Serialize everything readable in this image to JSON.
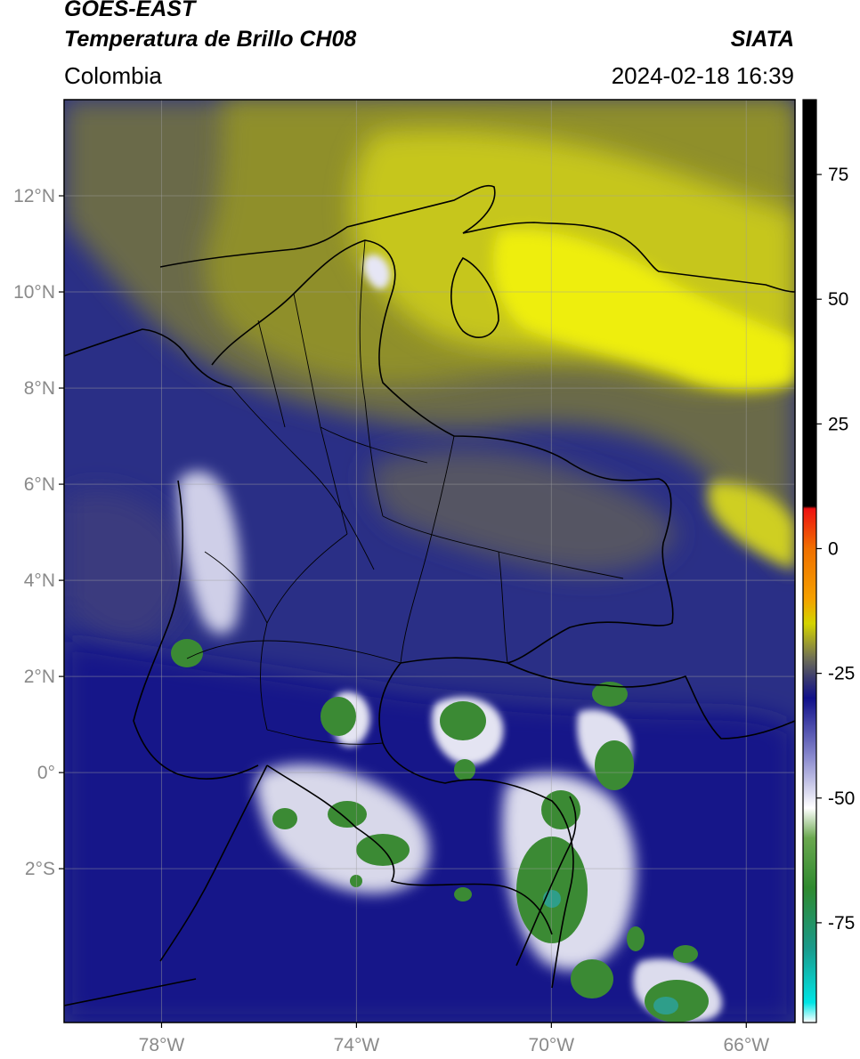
{
  "header": {
    "satellite": "GOES-EAST",
    "product": "Temperatura de Brillo CH08",
    "region": "Colombia",
    "source": "SIATA",
    "timestamp": "2024-02-18 16:39"
  },
  "map": {
    "lon_range": [
      -80,
      -65
    ],
    "lat_range": [
      -5.2,
      14.0
    ],
    "lat_ticks": [
      {
        "value": 12,
        "label": "12°N"
      },
      {
        "value": 10,
        "label": "10°N"
      },
      {
        "value": 8,
        "label": "8°N"
      },
      {
        "value": 6,
        "label": "6°N"
      },
      {
        "value": 4,
        "label": "4°N"
      },
      {
        "value": 2,
        "label": "2°N"
      },
      {
        "value": 0,
        "label": "0°"
      },
      {
        "value": -2,
        "label": "2°S"
      }
    ],
    "lon_ticks": [
      {
        "value": -78,
        "label": "78°W"
      },
      {
        "value": -74,
        "label": "74°W"
      },
      {
        "value": -70,
        "label": "70°W"
      },
      {
        "value": -66,
        "label": "66°W"
      }
    ],
    "grid": true
  },
  "colorbar": {
    "range": [
      -95,
      90
    ],
    "ticks": [
      {
        "value": 75,
        "label": "75"
      },
      {
        "value": 50,
        "label": "50"
      },
      {
        "value": 25,
        "label": "25"
      },
      {
        "value": 0,
        "label": "0"
      },
      {
        "value": -25,
        "label": "-25"
      },
      {
        "value": -50,
        "label": "-50"
      },
      {
        "value": -75,
        "label": "-75"
      }
    ],
    "stops": [
      {
        "value": -95,
        "color": "#ffffff"
      },
      {
        "value": -91,
        "color": "#00e5e5"
      },
      {
        "value": -80,
        "color": "#1a9a8a"
      },
      {
        "value": -68,
        "color": "#2f8a2f"
      },
      {
        "value": -58,
        "color": "#6aa84f"
      },
      {
        "value": -52,
        "color": "#ffffff"
      },
      {
        "value": -42,
        "color": "#8c8ccf"
      },
      {
        "value": -30,
        "color": "#10108a"
      },
      {
        "value": -26,
        "color": "#3a3a70"
      },
      {
        "value": -22,
        "color": "#6f6f55"
      },
      {
        "value": -15,
        "color": "#d4d400"
      },
      {
        "value": -10,
        "color": "#f5a000"
      },
      {
        "value": 0,
        "color": "#f07000"
      },
      {
        "value": 8,
        "color": "#ee1111"
      },
      {
        "value": 8.5,
        "color": "#000000"
      },
      {
        "value": 90,
        "color": "#000000"
      }
    ]
  }
}
